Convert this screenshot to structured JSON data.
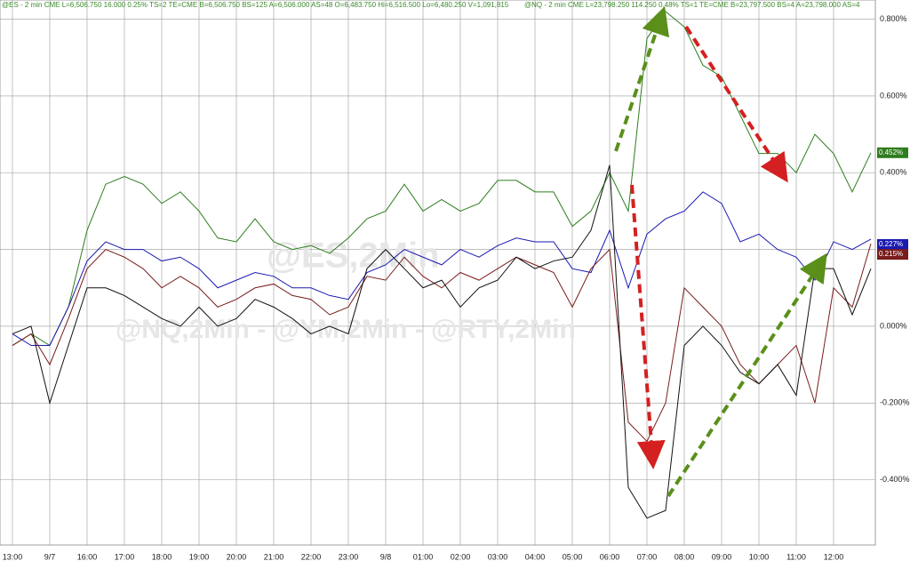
{
  "chart_data": {
    "type": "line",
    "header": [
      "@ES - 2 min CME  L=6,506.750  16.000  0.25%  TS=2  TE=CME  B=6,506.750  BS=125  A=6,506.000  AS=48  O=6,483.750  Hi=6,516.500  Lo=6,480.250  V=1,091,815",
      "@NQ - 2 min CME  L=23,798.250  114.250  0.48%  TS=1  TE=CME  B=23,797.500  BS=4  A=23,798.000  AS=4"
    ],
    "watermark": [
      "@ES,2Min",
      "@NQ,2Min - @YM,2Min - @RTY,2Min"
    ],
    "categories": [
      "13:00",
      null,
      "9/7",
      null,
      "16:00",
      null,
      "17:00",
      null,
      "18:00",
      null,
      "19:00",
      null,
      "20:00",
      null,
      "21:00",
      null,
      "22:00",
      null,
      "23:00",
      null,
      "9/8",
      null,
      "01:00",
      null,
      "02:00",
      null,
      "03:00",
      null,
      "04:00",
      null,
      "05:00",
      null,
      "06:00",
      null,
      "07:00",
      null,
      "08:00",
      null,
      "09:00",
      null,
      "10:00",
      null,
      "11:00",
      null,
      "12:00",
      null,
      null
    ],
    "series": [
      {
        "color": "#2e7d1e",
        "values": [
          -0.05,
          -0.02,
          -0.05,
          0.05,
          0.25,
          0.37,
          0.39,
          0.37,
          0.32,
          0.35,
          0.3,
          0.23,
          0.22,
          0.28,
          0.22,
          0.2,
          0.21,
          0.19,
          0.23,
          0.28,
          0.3,
          0.37,
          0.3,
          0.33,
          0.3,
          0.32,
          0.38,
          0.38,
          0.35,
          0.35,
          0.26,
          0.3,
          0.4,
          0.3,
          0.75,
          0.82,
          0.78,
          0.68,
          0.65,
          0.55,
          0.45,
          0.45,
          0.4,
          0.5,
          0.45,
          0.35,
          0.452
        ],
        "value_labels": [
          null,
          null,
          null,
          null,
          null,
          null,
          null,
          null,
          null,
          null,
          null,
          null,
          null,
          null,
          null,
          null,
          null,
          null,
          null,
          null,
          null,
          null,
          null,
          null,
          null,
          null,
          null,
          null,
          null,
          null,
          null,
          null,
          null,
          null,
          null,
          null,
          null,
          null,
          null,
          null,
          null,
          null,
          null,
          null,
          null,
          null,
          "0.452%"
        ]
      },
      {
        "color": "#1a1ab0",
        "values": [
          -0.02,
          -0.05,
          -0.05,
          0.05,
          0.17,
          0.22,
          0.2,
          0.2,
          0.17,
          0.18,
          0.15,
          0.1,
          0.12,
          0.14,
          0.13,
          0.1,
          0.1,
          0.08,
          0.07,
          0.14,
          0.16,
          0.2,
          0.18,
          0.16,
          0.2,
          0.18,
          0.21,
          0.23,
          0.22,
          0.22,
          0.15,
          0.14,
          0.25,
          0.1,
          0.24,
          0.28,
          0.3,
          0.35,
          0.32,
          0.22,
          0.24,
          0.2,
          0.18,
          0.12,
          0.22,
          0.2,
          0.227
        ],
        "value_labels": [
          null,
          null,
          null,
          null,
          null,
          null,
          null,
          null,
          null,
          null,
          null,
          null,
          null,
          null,
          null,
          null,
          null,
          null,
          null,
          null,
          null,
          null,
          null,
          null,
          null,
          null,
          null,
          null,
          null,
          null,
          null,
          null,
          null,
          null,
          null,
          null,
          null,
          null,
          null,
          null,
          null,
          null,
          null,
          null,
          null,
          null,
          "0.227%"
        ]
      },
      {
        "color": "#7a1c1c",
        "values": [
          -0.05,
          -0.02,
          -0.1,
          0.02,
          0.15,
          0.2,
          0.18,
          0.15,
          0.1,
          0.13,
          0.1,
          0.05,
          0.07,
          0.1,
          0.11,
          0.08,
          0.07,
          0.03,
          0.05,
          0.13,
          0.12,
          0.18,
          0.13,
          0.1,
          0.14,
          0.12,
          0.15,
          0.18,
          0.16,
          0.14,
          0.05,
          0.15,
          0.2,
          -0.25,
          -0.3,
          -0.2,
          0.1,
          0.05,
          0.0,
          -0.1,
          -0.15,
          -0.1,
          -0.05,
          -0.2,
          0.1,
          0.05,
          0.215
        ],
        "value_labels": [
          null,
          null,
          null,
          null,
          null,
          null,
          null,
          null,
          null,
          null,
          null,
          null,
          null,
          null,
          null,
          null,
          null,
          null,
          null,
          null,
          null,
          null,
          null,
          null,
          null,
          null,
          null,
          null,
          null,
          null,
          null,
          null,
          null,
          null,
          null,
          null,
          null,
          null,
          null,
          null,
          null,
          null,
          null,
          null,
          null,
          null,
          "0.215%"
        ]
      },
      {
        "color": "#111111",
        "values": [
          -0.02,
          0.0,
          -0.2,
          -0.05,
          0.1,
          0.1,
          0.08,
          0.05,
          0.02,
          0.0,
          0.05,
          0.0,
          0.02,
          0.07,
          0.05,
          0.02,
          -0.02,
          0.0,
          -0.02,
          0.15,
          0.2,
          0.15,
          0.1,
          0.12,
          0.05,
          0.1,
          0.12,
          0.18,
          0.15,
          0.17,
          0.18,
          0.25,
          0.42,
          -0.42,
          -0.5,
          -0.48,
          -0.05,
          0.0,
          -0.05,
          -0.12,
          -0.15,
          -0.1,
          -0.18,
          0.15,
          0.15,
          0.03,
          0.15
        ]
      }
    ],
    "ylim": [
      -0.57,
      0.85
    ],
    "yticks": [
      {
        "value": 0.8,
        "label": "0.800%"
      },
      {
        "value": 0.6,
        "label": "0.600%"
      },
      {
        "value": 0.4,
        "label": "0.400%"
      },
      {
        "value": 0.2,
        "label": "0.200%"
      },
      {
        "value": 0,
        "label": "0.000%"
      },
      {
        "value": -0.2,
        "label": "-0.200%"
      },
      {
        "value": -0.4,
        "label": "-0.400%"
      }
    ],
    "grid": true
  }
}
